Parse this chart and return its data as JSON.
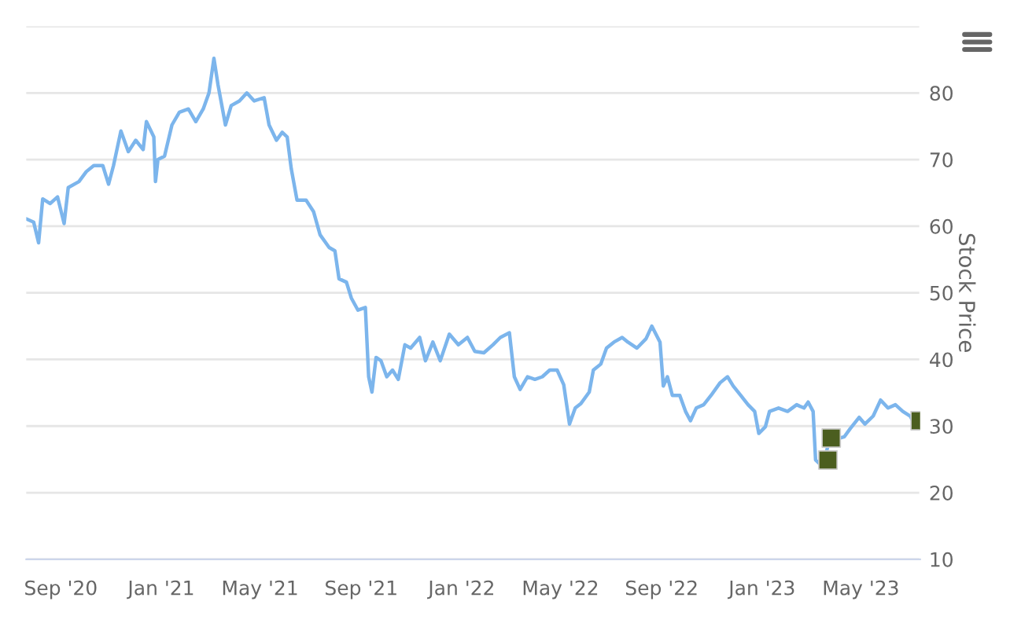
{
  "chart_data": {
    "type": "line",
    "ylabel": "Stock Price",
    "xlim": [
      "2020-07-21",
      "2023-07-12"
    ],
    "ylim": [
      10,
      90
    ],
    "yticks": [
      10,
      20,
      30,
      40,
      50,
      60,
      70,
      80,
      {
        "value": 90,
        "label": null
      }
    ],
    "xticks": [
      {
        "value": "2020-09-01",
        "label": "Sep '20"
      },
      {
        "value": "2021-01-01",
        "label": "Jan '21"
      },
      {
        "value": "2021-05-01",
        "label": "May '21"
      },
      {
        "value": "2021-09-01",
        "label": "Sep '21"
      },
      {
        "value": "2022-01-01",
        "label": "Jan '22"
      },
      {
        "value": "2022-05-01",
        "label": "May '22"
      },
      {
        "value": "2022-09-01",
        "label": "Sep '22"
      },
      {
        "value": "2023-01-01",
        "label": "Jan '23"
      },
      {
        "value": "2023-05-01",
        "label": "May '23"
      }
    ],
    "grid": "y",
    "legend": false,
    "series": [
      {
        "color": "#7cb5ec",
        "marker": "none",
        "x": [
          "2020-07-21",
          "2020-07-30",
          "2020-08-05",
          "2020-08-10",
          "2020-08-19",
          "2020-08-28",
          "2020-09-05",
          "2020-09-10",
          "2020-09-23",
          "2020-10-02",
          "2020-10-11",
          "2020-10-22",
          "2020-10-29",
          "2020-11-04",
          "2020-11-13",
          "2020-11-22",
          "2020-12-01",
          "2020-12-10",
          "2020-12-14",
          "2020-12-23",
          "2020-12-25",
          "2020-12-28",
          "2021-01-05",
          "2021-01-14",
          "2021-01-23",
          "2021-02-03",
          "2021-02-12",
          "2021-02-21",
          "2021-02-28",
          "2021-03-06",
          "2021-03-11",
          "2021-03-20",
          "2021-03-27",
          "2021-04-06",
          "2021-04-15",
          "2021-04-24",
          "2021-05-06",
          "2021-05-12",
          "2021-05-21",
          "2021-05-28",
          "2021-06-03",
          "2021-06-08",
          "2021-06-15",
          "2021-06-26",
          "2021-07-05",
          "2021-07-13",
          "2021-07-24",
          "2021-07-31",
          "2021-08-05",
          "2021-08-14",
          "2021-08-20",
          "2021-08-28",
          "2021-09-06",
          "2021-09-10",
          "2021-09-14",
          "2021-09-19",
          "2021-09-25",
          "2021-10-02",
          "2021-10-09",
          "2021-10-16",
          "2021-10-24",
          "2021-10-31",
          "2021-11-11",
          "2021-11-18",
          "2021-11-27",
          "2021-12-06",
          "2021-12-17",
          "2021-12-28",
          "2022-01-08",
          "2022-01-17",
          "2022-01-28",
          "2022-02-08",
          "2022-02-17",
          "2022-02-28",
          "2022-03-06",
          "2022-03-13",
          "2022-03-22",
          "2022-03-31",
          "2022-04-09",
          "2022-04-18",
          "2022-04-27",
          "2022-05-05",
          "2022-05-12",
          "2022-05-19",
          "2022-05-26",
          "2022-06-05",
          "2022-06-10",
          "2022-06-19",
          "2022-06-26",
          "2022-07-05",
          "2022-07-15",
          "2022-07-22",
          "2022-08-02",
          "2022-08-13",
          "2022-08-20",
          "2022-08-30",
          "2022-09-03",
          "2022-09-08",
          "2022-09-14",
          "2022-09-23",
          "2022-09-30",
          "2022-10-06",
          "2022-10-13",
          "2022-10-22",
          "2022-10-31",
          "2022-11-11",
          "2022-11-20",
          "2022-11-27",
          "2022-12-06",
          "2022-12-15",
          "2022-12-23",
          "2022-12-28",
          "2023-01-05",
          "2023-01-10",
          "2023-01-21",
          "2023-02-01",
          "2023-02-12",
          "2023-02-21",
          "2023-02-26",
          "2023-03-04",
          "2023-03-07",
          "2023-03-13",
          "2023-03-17",
          "2023-03-22",
          "2023-03-31",
          "2023-04-11",
          "2023-04-18",
          "2023-04-29",
          "2023-05-06",
          "2023-05-16",
          "2023-05-25",
          "2023-06-03",
          "2023-06-12",
          "2023-06-21",
          "2023-06-30",
          "2023-07-05"
        ],
        "values": [
          61.1,
          60.6,
          57.5,
          64.1,
          63.4,
          64.4,
          60.4,
          65.8,
          66.7,
          68.2,
          69.1,
          69.1,
          66.3,
          69.1,
          74.3,
          71.2,
          72.9,
          71.5,
          75.7,
          73.4,
          66.7,
          70.0,
          70.5,
          75.2,
          77.1,
          77.6,
          75.7,
          77.6,
          80.0,
          85.2,
          81.2,
          75.2,
          78.1,
          78.8,
          80.0,
          78.8,
          79.3,
          75.2,
          72.9,
          74.1,
          73.4,
          68.6,
          63.9,
          63.9,
          62.2,
          58.7,
          56.8,
          56.3,
          52.1,
          51.6,
          49.2,
          47.4,
          47.8,
          37.4,
          35.1,
          40.3,
          39.8,
          37.4,
          38.4,
          37.0,
          42.2,
          41.7,
          43.3,
          39.8,
          42.6,
          39.8,
          43.8,
          42.2,
          43.3,
          41.2,
          41.0,
          42.2,
          43.3,
          44.0,
          37.4,
          35.5,
          37.4,
          37.0,
          37.4,
          38.4,
          38.4,
          36.2,
          30.3,
          32.7,
          33.4,
          35.1,
          38.4,
          39.3,
          41.7,
          42.6,
          43.3,
          42.6,
          41.7,
          43.1,
          45.0,
          42.6,
          36.0,
          37.4,
          34.6,
          34.6,
          32.2,
          30.8,
          32.7,
          33.2,
          34.6,
          36.5,
          37.4,
          36.0,
          34.6,
          33.2,
          32.2,
          28.9,
          29.9,
          32.2,
          32.7,
          32.2,
          33.2,
          32.7,
          33.6,
          32.2,
          24.9,
          24.2,
          24.7,
          27.0,
          28.0,
          28.4,
          29.6,
          31.3,
          30.3,
          31.5,
          33.9,
          32.7,
          33.2,
          32.2,
          31.5,
          30.3
        ]
      },
      {
        "type": "scatter",
        "color": "#4b5e1f",
        "marker": "square",
        "x": [
          "2023-03-22",
          "2023-03-26",
          "2023-07-12"
        ],
        "values": [
          24.9,
          28.2,
          30.8
        ]
      }
    ]
  }
}
